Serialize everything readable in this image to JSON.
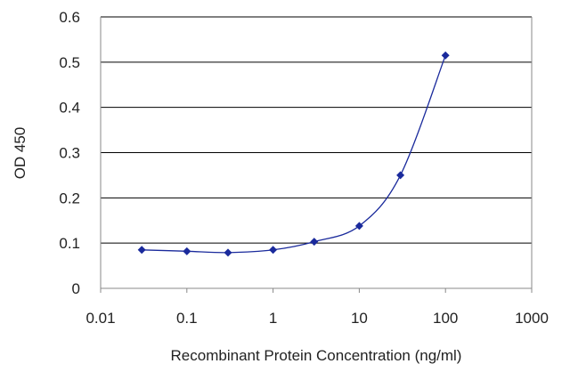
{
  "chart_data": {
    "type": "scatter",
    "title": "",
    "xlabel": "Recombinant Protein Concentration (ng/ml)",
    "ylabel": "OD 450",
    "x_scale": "log",
    "xlim": [
      0.01,
      1000
    ],
    "ylim": [
      0,
      0.6
    ],
    "x_ticks": [
      0.01,
      0.1,
      1,
      10,
      100,
      1000
    ],
    "x_tick_labels": [
      "0.01",
      "0.1",
      "1",
      "10",
      "100",
      "1000"
    ],
    "y_ticks": [
      0,
      0.1,
      0.2,
      0.3,
      0.4,
      0.5,
      0.6
    ],
    "y_tick_labels": [
      "0",
      "0.1",
      "0.2",
      "0.3",
      "0.4",
      "0.5",
      "0.6"
    ],
    "grid": "horizontal",
    "legend": "none",
    "series": [
      {
        "color": "#1a2a9c",
        "marker": "diamond",
        "fit_line": true,
        "x": [
          0.03,
          0.1,
          0.3,
          1,
          3,
          10,
          30,
          100
        ],
        "y": [
          0.085,
          0.082,
          0.079,
          0.085,
          0.103,
          0.138,
          0.25,
          0.515
        ]
      }
    ]
  }
}
